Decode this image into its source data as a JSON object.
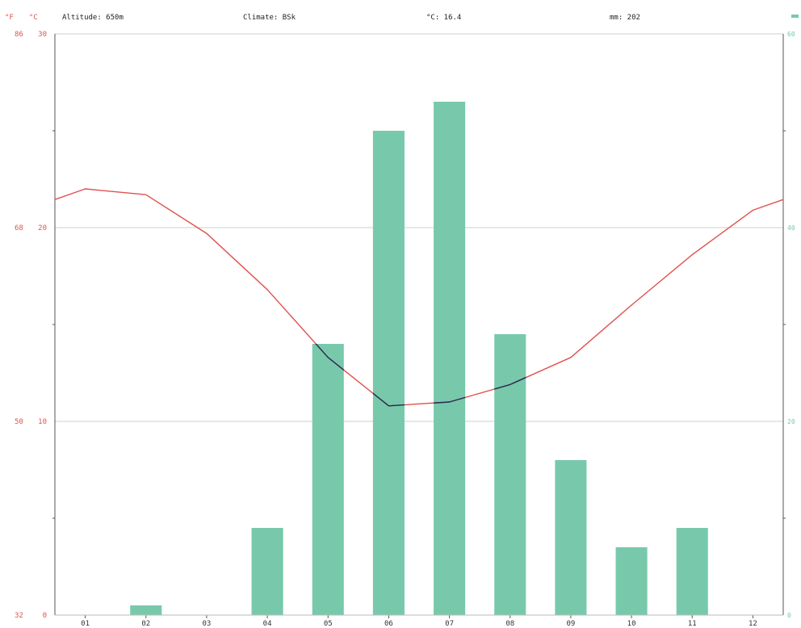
{
  "header": {
    "unit_f": "°F",
    "unit_c": "°C",
    "altitude": "Altitude: 650m",
    "climate": "Climate: BSk",
    "avg_temp": "°C: 16.4",
    "precip_total": "mm: 202"
  },
  "colors": {
    "temperature": "#e0524f",
    "temperature_below": "#1f2f55",
    "precipitation": "#78c9ab",
    "grid": "#cfcfcf",
    "axis": "#555555"
  },
  "chart_data": {
    "type": "bar",
    "categories": [
      "01",
      "02",
      "03",
      "04",
      "05",
      "06",
      "07",
      "08",
      "09",
      "10",
      "11",
      "12"
    ],
    "series": [
      {
        "type": "bar",
        "axis": "right",
        "unit": "mm",
        "values": [
          0,
          1,
          0,
          9,
          28,
          50,
          53,
          29,
          16,
          7,
          9,
          0
        ]
      },
      {
        "type": "line",
        "axis": "left",
        "unit": "°C",
        "values": [
          22.0,
          21.7,
          19.7,
          16.8,
          13.3,
          10.8,
          11.0,
          11.9,
          13.3,
          16.0,
          18.6,
          20.9
        ]
      }
    ],
    "y_left": {
      "unit": "°C",
      "ylim": [
        0,
        30
      ],
      "ticks": [
        "0",
        "10",
        "20",
        "30"
      ]
    },
    "y_left_f": {
      "unit": "°F",
      "ticks": [
        "32",
        "50",
        "68",
        "86"
      ]
    },
    "y_right": {
      "unit": "mm",
      "ylim": [
        0,
        60
      ],
      "ticks": [
        "0",
        "20",
        "40",
        "60"
      ]
    },
    "grid": true
  }
}
